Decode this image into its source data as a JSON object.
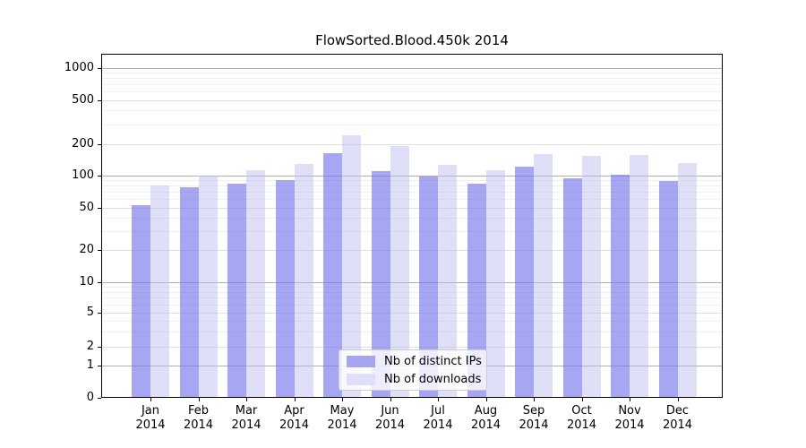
{
  "chart_data": {
    "type": "bar",
    "title": "FlowSorted.Blood.450k 2014",
    "categories": [
      "Jan 2014",
      "Feb 2014",
      "Mar 2014",
      "Apr 2014",
      "May 2014",
      "Jun 2014",
      "Jul 2014",
      "Aug 2014",
      "Sep 2014",
      "Oct 2014",
      "Nov 2014",
      "Dec 2014"
    ],
    "series": [
      {
        "name": "Nb of distinct IPs",
        "values": [
          53,
          77,
          83,
          91,
          163,
          110,
          97,
          83,
          120,
          94,
          101,
          88
        ]
      },
      {
        "name": "Nb of downloads",
        "values": [
          80,
          100,
          111,
          129,
          240,
          192,
          125,
          112,
          161,
          153,
          156,
          132
        ]
      }
    ],
    "xlabel": "",
    "ylabel": "",
    "yscale": "symlog",
    "yticks": [
      0,
      1,
      2,
      5,
      10,
      20,
      50,
      100,
      200,
      500,
      1000
    ],
    "ylim": [
      0,
      1100
    ],
    "grid": "horizontal major+minor",
    "legend_position": "lower center inside plot"
  },
  "colors": {
    "distinct_ips_bar": "rgba(115,115,235,0.64)",
    "downloads_bar": "rgba(185,185,240,0.46)",
    "distinct_ips_swatch": "#a5a5f2",
    "downloads_swatch": "#dfdff8",
    "grid_decade": "#b0b0b0",
    "grid_labeled": "#e0e0e0",
    "grid_minor": "#efefef",
    "axis": "#000000"
  }
}
